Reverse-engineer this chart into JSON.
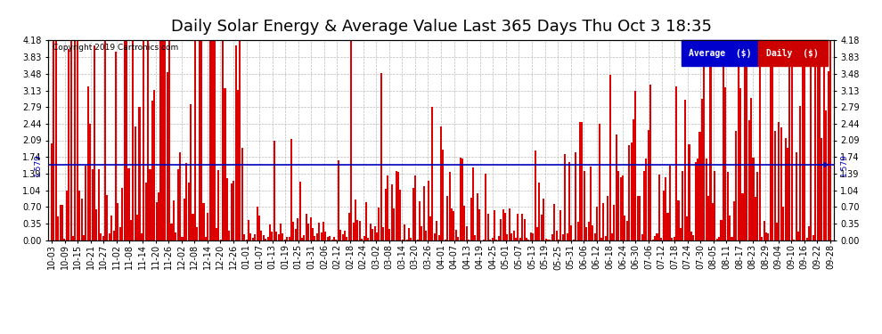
{
  "title": "Daily Solar Energy & Average Value Last 365 Days Thu Oct 3 18:35",
  "copyright": "Copyright 2019 Cartronics.com",
  "bar_color": "#dd0000",
  "avg_line_color": "#0000bb",
  "avg_value": 1.579,
  "avg_label": "Average  ($)",
  "daily_label": "Daily  ($)",
  "ylim": [
    0.0,
    4.18
  ],
  "yticks": [
    0.0,
    0.35,
    0.7,
    1.04,
    1.39,
    1.74,
    2.09,
    2.44,
    2.79,
    3.13,
    3.48,
    3.83,
    4.18
  ],
  "background_color": "#ffffff",
  "grid_color": "#aaaaaa",
  "n_bars": 365,
  "x_labels": [
    "10-03",
    "10-09",
    "10-15",
    "10-21",
    "10-27",
    "11-02",
    "11-08",
    "11-14",
    "11-20",
    "11-26",
    "12-02",
    "12-08",
    "12-14",
    "12-20",
    "12-26",
    "01-01",
    "01-07",
    "01-13",
    "01-19",
    "01-25",
    "01-31",
    "02-06",
    "02-12",
    "02-18",
    "02-24",
    "03-02",
    "03-08",
    "03-14",
    "03-20",
    "03-26",
    "04-01",
    "04-07",
    "04-13",
    "04-19",
    "04-25",
    "05-01",
    "05-07",
    "05-13",
    "05-19",
    "05-25",
    "05-31",
    "06-06",
    "06-12",
    "06-18",
    "06-24",
    "06-30",
    "07-06",
    "07-12",
    "07-18",
    "07-24",
    "07-30",
    "08-05",
    "08-11",
    "08-17",
    "08-23",
    "08-29",
    "09-04",
    "09-10",
    "09-16",
    "09-22",
    "09-28"
  ],
  "title_fontsize": 13,
  "tick_fontsize": 7,
  "label_fontsize": 7
}
